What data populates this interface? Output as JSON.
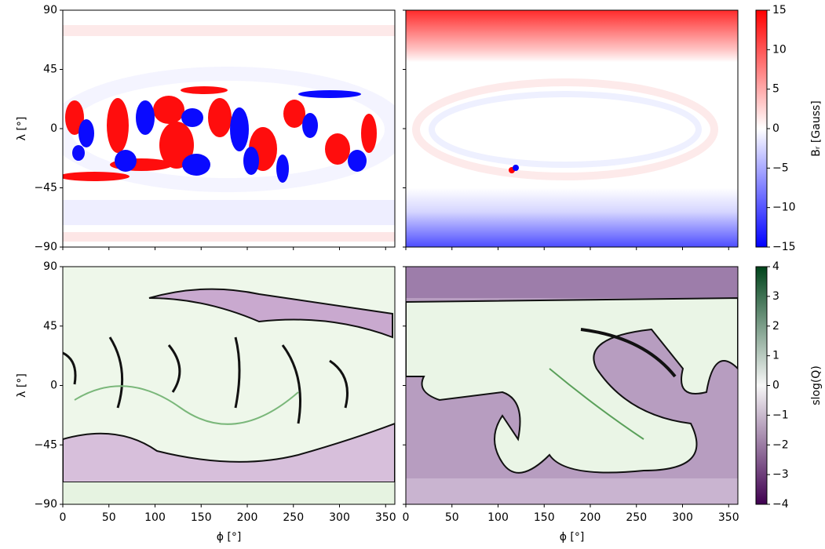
{
  "chart_data": [
    {
      "type": "heatmap",
      "xlim": [
        0,
        360
      ],
      "ylim": [
        -90,
        90
      ],
      "xticks": [
        0,
        50,
        100,
        150,
        200,
        250,
        300,
        350
      ],
      "yticks": [
        {
          "value": -90,
          "label": "−90"
        },
        {
          "value": -45,
          "label": "−45"
        },
        0,
        45,
        90
      ],
      "ylabel": "λ [°]",
      "xtick_labels": false,
      "ytick_labels": true
    },
    {
      "type": "heatmap",
      "xlim": [
        0,
        360
      ],
      "ylim": [
        -90,
        90
      ],
      "xticks": [
        0,
        50,
        100,
        150,
        200,
        250,
        300,
        350
      ],
      "yticks": [
        {
          "value": -90,
          "label": "−90"
        },
        {
          "value": -45,
          "label": "−45"
        },
        0,
        45,
        90
      ],
      "xtick_labels": false,
      "ytick_labels": false,
      "colorbar": {
        "label": "Bᵣ [Gauss]",
        "lim": [
          -15,
          15
        ],
        "ticks": [
          {
            "value": -15,
            "label": "−15"
          },
          {
            "value": -10,
            "label": "−10"
          },
          {
            "value": -5,
            "label": "−5"
          },
          0,
          5,
          10,
          15
        ],
        "colors": [
          "#0000ff",
          "#ffffff",
          "#ff0000"
        ]
      }
    },
    {
      "type": "heatmap",
      "xlim": [
        0,
        360
      ],
      "ylim": [
        -90,
        90
      ],
      "xticks": [
        0,
        50,
        100,
        150,
        200,
        250,
        300,
        350
      ],
      "yticks": [
        {
          "value": -90,
          "label": "−90"
        },
        {
          "value": -45,
          "label": "−45"
        },
        0,
        45,
        90
      ],
      "xlabel": "ϕ [°]",
      "ylabel": "λ [°]",
      "xtick_labels": true,
      "ytick_labels": true
    },
    {
      "type": "heatmap",
      "xlim": [
        0,
        360
      ],
      "ylim": [
        -90,
        90
      ],
      "xticks": [
        0,
        50,
        100,
        150,
        200,
        250,
        300,
        350
      ],
      "yticks": [
        {
          "value": -90,
          "label": "−90"
        },
        {
          "value": -45,
          "label": "−45"
        },
        0,
        45,
        90
      ],
      "xlabel": "ϕ [°]",
      "xtick_labels": true,
      "ytick_labels": false,
      "colorbar": {
        "label": "slog(Q)",
        "lim": [
          -4,
          4
        ],
        "ticks": [
          {
            "value": -4,
            "label": "−4"
          },
          {
            "value": -3,
            "label": "−3"
          },
          {
            "value": -2,
            "label": "−2"
          },
          {
            "value": -1,
            "label": "−1"
          },
          0,
          1,
          2,
          3,
          4
        ],
        "colors": [
          "#3f0050",
          "#f7f7f7",
          "#00441b"
        ]
      }
    }
  ]
}
